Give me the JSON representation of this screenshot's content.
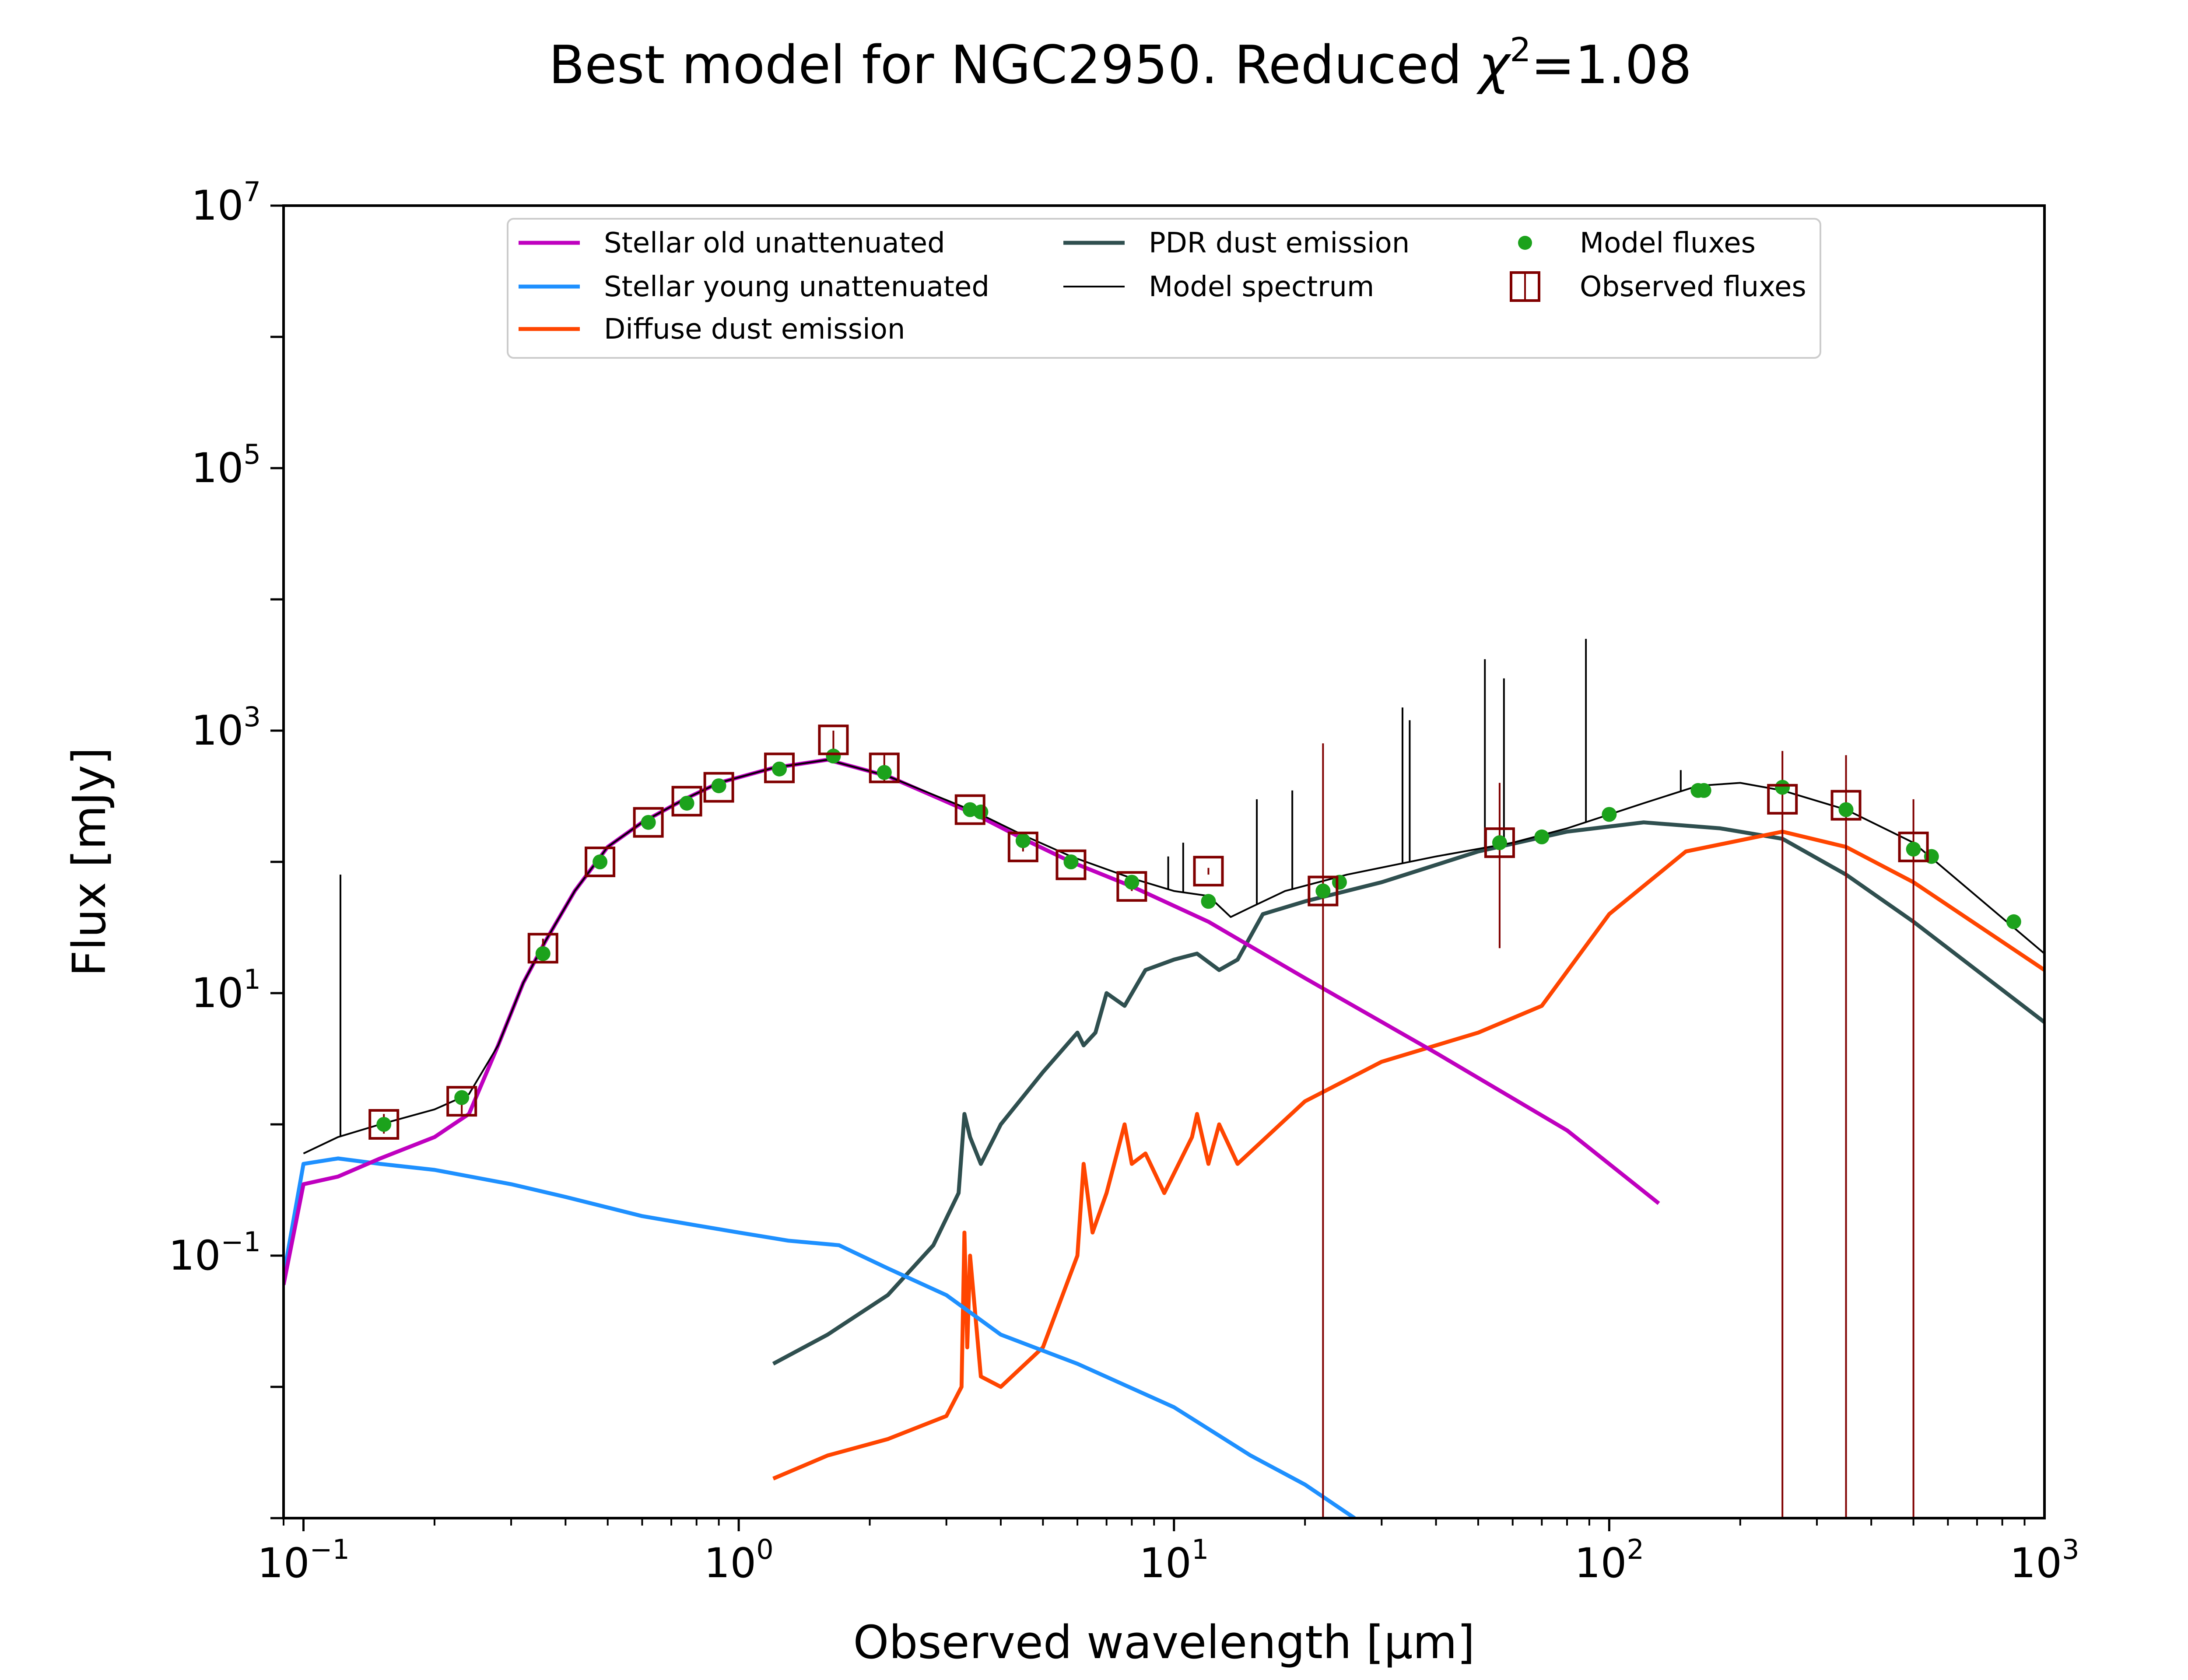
{
  "chart_data": {
    "type": "line",
    "title": "Best model for NGC2950. Reduced χ²=1.08",
    "title_parts": {
      "main": "Best model for NGC2950. Reduced ",
      "chi": "χ",
      "sup": "2",
      "value": "=1.08"
    },
    "xlabel": "Observed wavelength [μm]",
    "ylabel": "Flux [mJy]",
    "x_scale": "log",
    "y_scale": "log",
    "xlim": [
      0.09,
      1000
    ],
    "ylim": [
      0.001,
      10000000
    ],
    "x_ticks": [
      {
        "base": "10",
        "exp": "−1",
        "value": 0.1
      },
      {
        "base": "10",
        "exp": "0",
        "value": 1
      },
      {
        "base": "10",
        "exp": "1",
        "value": 10
      },
      {
        "base": "10",
        "exp": "2",
        "value": 100
      },
      {
        "base": "10",
        "exp": "3",
        "value": 1000
      }
    ],
    "y_ticks": [
      {
        "base": "10",
        "exp": "−1",
        "value": 0.1
      },
      {
        "base": "10",
        "exp": "1",
        "value": 10
      },
      {
        "base": "10",
        "exp": "3",
        "value": 1000
      },
      {
        "base": "10",
        "exp": "5",
        "value": 100000
      },
      {
        "base": "10",
        "exp": "7",
        "value": 10000000
      }
    ],
    "grid": false,
    "legend_position": "top-center",
    "colors": {
      "stellar_old": "#bf00bf",
      "stellar_young": "#1e90ff",
      "diffuse_dust": "#ff4500",
      "pdr_dust": "#2f4f4f",
      "model_spectrum": "#000000",
      "model_fluxes": "#1ca21c",
      "observed_fluxes": "#800000"
    },
    "series": [
      {
        "name": "Stellar old unattenuated",
        "key": "stellar_old",
        "x": [
          0.09,
          0.1,
          0.12,
          0.15,
          0.2,
          0.24,
          0.28,
          0.32,
          0.36,
          0.42,
          0.5,
          0.6,
          0.75,
          0.9,
          1.2,
          1.6,
          2.2,
          3.5,
          4.5,
          5.8,
          8,
          12,
          20,
          40,
          80,
          130
        ],
        "y": [
          0.06,
          0.35,
          0.4,
          0.55,
          0.8,
          1.2,
          4,
          12,
          25,
          60,
          130,
          200,
          300,
          400,
          520,
          600,
          450,
          230,
          150,
          100,
          65,
          35,
          13,
          3.5,
          0.9,
          0.25
        ]
      },
      {
        "name": "Stellar young unattenuated",
        "key": "stellar_young",
        "x": [
          0.09,
          0.1,
          0.12,
          0.15,
          0.2,
          0.3,
          0.4,
          0.6,
          0.8,
          1.0,
          1.3,
          1.7,
          2.2,
          3.0,
          4.0,
          6.0,
          10,
          15,
          20,
          26
        ],
        "y": [
          0.07,
          0.5,
          0.55,
          0.5,
          0.45,
          0.35,
          0.28,
          0.2,
          0.17,
          0.15,
          0.13,
          0.12,
          0.08,
          0.05,
          0.025,
          0.015,
          0.007,
          0.003,
          0.0018,
          0.001
        ]
      },
      {
        "name": "Diffuse dust emission",
        "key": "diffuse_dust",
        "x": [
          1.2,
          1.6,
          2.2,
          3.0,
          3.25,
          3.3,
          3.35,
          3.4,
          3.6,
          4.0,
          5.0,
          6.0,
          6.2,
          6.5,
          7.0,
          7.7,
          8.0,
          8.6,
          9.5,
          11.0,
          11.3,
          12.0,
          12.7,
          14,
          20,
          30,
          50,
          70,
          100,
          150,
          250,
          350,
          500,
          1000
        ],
        "y": [
          0.002,
          0.003,
          0.004,
          0.006,
          0.01,
          0.15,
          0.02,
          0.1,
          0.012,
          0.01,
          0.02,
          0.1,
          0.5,
          0.15,
          0.3,
          1.0,
          0.5,
          0.6,
          0.3,
          0.8,
          1.2,
          0.5,
          1.0,
          0.5,
          1.5,
          3,
          5,
          8,
          40,
          120,
          170,
          130,
          70,
          15
        ]
      },
      {
        "name": "PDR dust emission",
        "key": "pdr_dust",
        "x": [
          1.2,
          1.6,
          2.2,
          2.8,
          3.2,
          3.3,
          3.4,
          3.6,
          4.0,
          5.0,
          6.0,
          6.2,
          6.6,
          7.0,
          7.7,
          8.6,
          10,
          11.3,
          12.7,
          14,
          16,
          20,
          30,
          50,
          80,
          120,
          180,
          250,
          350,
          500,
          1000
        ],
        "y": [
          0.015,
          0.025,
          0.05,
          0.12,
          0.3,
          1.2,
          0.8,
          0.5,
          1.0,
          2.5,
          5,
          4,
          5,
          10,
          8,
          15,
          18,
          20,
          15,
          18,
          40,
          50,
          70,
          120,
          170,
          200,
          180,
          150,
          80,
          35,
          6
        ]
      },
      {
        "name": "Model spectrum",
        "key": "model_spectrum",
        "x": [
          0.1,
          0.12,
          0.15,
          0.2,
          0.24,
          0.28,
          0.32,
          0.36,
          0.42,
          0.5,
          0.6,
          0.75,
          0.9,
          1.2,
          1.6,
          2.2,
          3.5,
          4.5,
          5.8,
          8,
          10,
          12,
          13.5,
          15,
          18,
          25,
          40,
          60,
          80,
          120,
          160,
          200,
          250,
          350,
          500,
          1000
        ],
        "y": [
          0.6,
          0.8,
          1.0,
          1.3,
          1.7,
          4,
          12,
          25,
          60,
          130,
          200,
          300,
          400,
          520,
          600,
          450,
          240,
          160,
          110,
          75,
          60,
          55,
          38,
          45,
          60,
          80,
          110,
          140,
          180,
          280,
          380,
          400,
          350,
          250,
          140,
          20
        ]
      }
    ],
    "emission_lines": [
      {
        "x": 0.1216,
        "y": 80
      },
      {
        "x": 9.7,
        "y": 110
      },
      {
        "x": 10.5,
        "y": 140
      },
      {
        "x": 15.5,
        "y": 300
      },
      {
        "x": 18.7,
        "y": 350
      },
      {
        "x": 33.5,
        "y": 1500
      },
      {
        "x": 34.8,
        "y": 1200
      },
      {
        "x": 51.8,
        "y": 3500
      },
      {
        "x": 57.3,
        "y": 2500
      },
      {
        "x": 88.4,
        "y": 5000
      },
      {
        "x": 146,
        "y": 500
      }
    ],
    "model_fluxes": {
      "name": "Model fluxes",
      "x": [
        0.153,
        0.231,
        0.355,
        0.48,
        0.62,
        0.76,
        0.9,
        1.24,
        1.65,
        2.16,
        3.4,
        3.6,
        4.5,
        5.8,
        8.0,
        12,
        22,
        24,
        56,
        70,
        100,
        160,
        165,
        250,
        350,
        500,
        550,
        850
      ],
      "y": [
        1.0,
        1.6,
        20,
        100,
        200,
        280,
        380,
        510,
        640,
        480,
        250,
        240,
        145,
        100,
        70,
        50,
        60,
        70,
        140,
        155,
        230,
        350,
        350,
        370,
        250,
        125,
        110,
        35
      ]
    },
    "observed_fluxes": {
      "name": "Observed fluxes",
      "x": [
        0.153,
        0.231,
        0.355,
        0.48,
        0.62,
        0.76,
        0.9,
        1.24,
        1.65,
        2.16,
        3.4,
        4.5,
        5.8,
        8.0,
        12,
        22,
        56,
        250,
        350,
        500
      ],
      "y": [
        1.0,
        1.5,
        22,
        100,
        200,
        290,
        370,
        520,
        850,
        520,
        250,
        130,
        95,
        65,
        85,
        60,
        140,
        300,
        270,
        130
      ],
      "err_low": [
        0.85,
        1.2,
        18,
        90,
        185,
        270,
        350,
        500,
        700,
        400,
        235,
        120,
        90,
        60,
        80,
        0.001,
        22,
        0.001,
        0.001,
        0.001
      ],
      "err_high": [
        1.2,
        1.8,
        26,
        110,
        215,
        310,
        390,
        540,
        1000,
        650,
        265,
        140,
        100,
        70,
        90,
        800,
        400,
        700,
        650,
        300
      ]
    }
  }
}
